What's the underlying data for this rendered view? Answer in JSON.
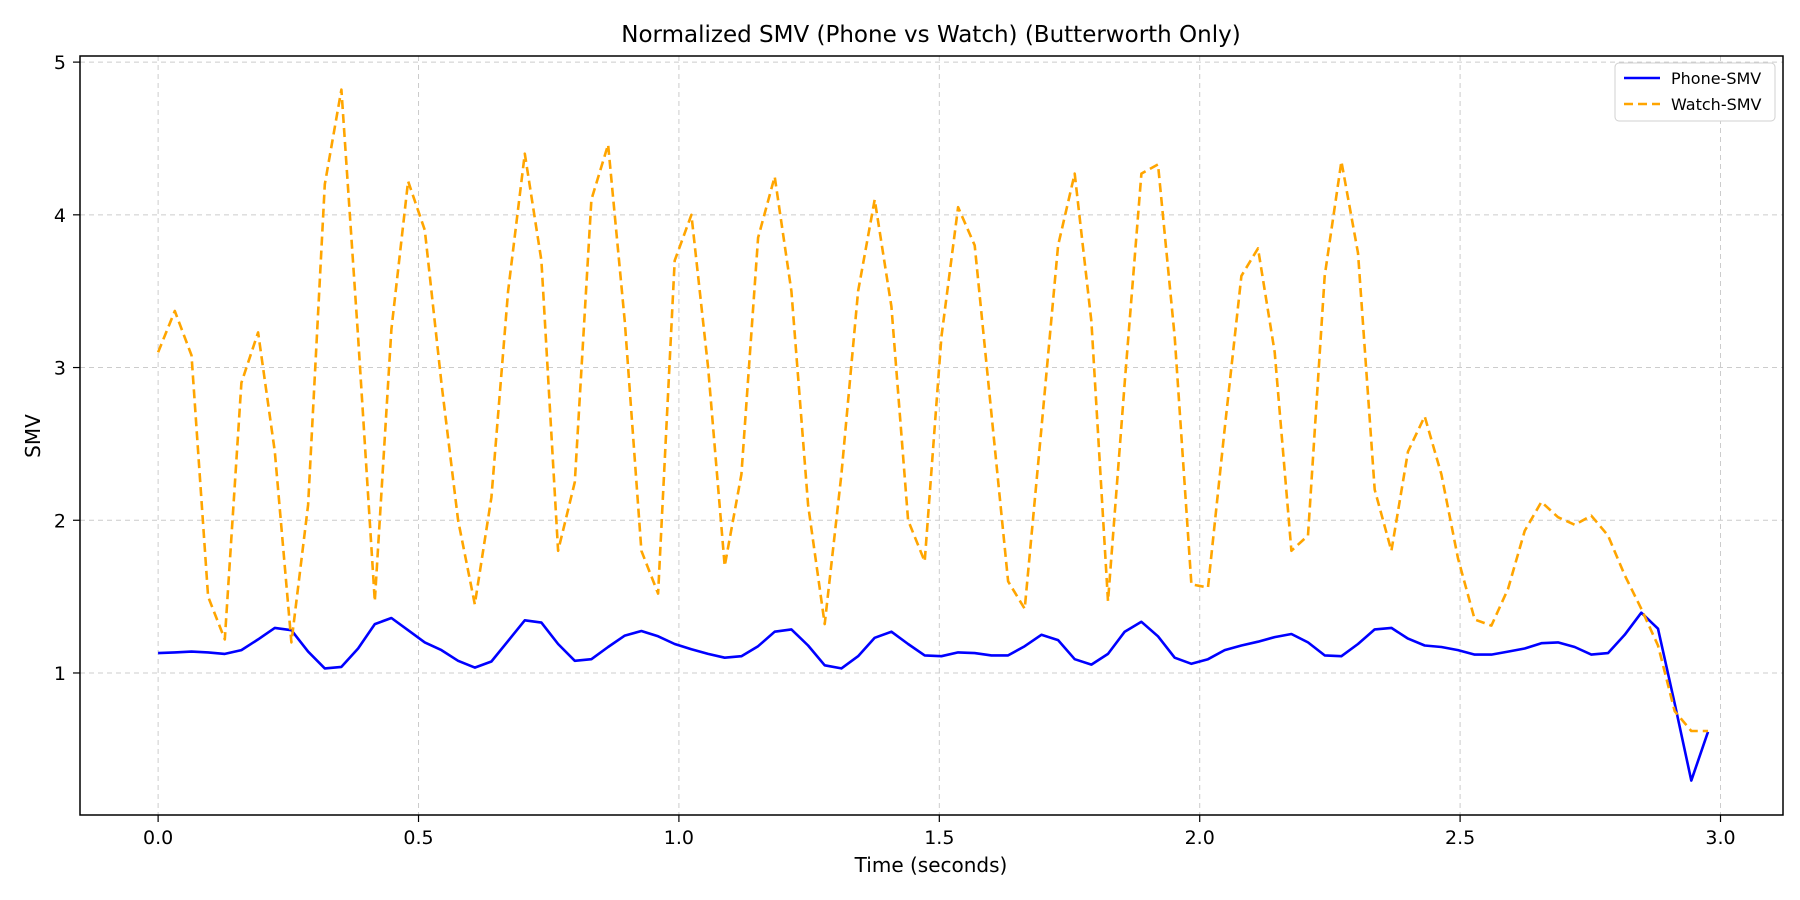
{
  "chart_data": {
    "type": "line",
    "title": "Normalized SMV (Phone vs Watch) (Butterworth Only)",
    "xlabel": "Time (seconds)",
    "ylabel": "SMV",
    "xlim": [
      -0.15,
      3.12
    ],
    "ylim": [
      0.07,
      5.04
    ],
    "xticks": [
      0.0,
      0.5,
      1.0,
      1.5,
      2.0,
      2.5,
      3.0
    ],
    "xtick_labels": [
      "0.0",
      "0.5",
      "1.0",
      "1.5",
      "2.0",
      "2.5",
      "3.0"
    ],
    "yticks": [
      1,
      2,
      3,
      4,
      5
    ],
    "ytick_labels": [
      "1",
      "2",
      "3",
      "4",
      "5"
    ],
    "grid": true,
    "legend_position": "top-right",
    "series": [
      {
        "name": "Phone-SMV",
        "color": "#0000ff",
        "dash": "solid",
        "x": [
          0.0,
          0.032,
          0.064,
          0.096,
          0.128,
          0.16,
          0.192,
          0.224,
          0.256,
          0.288,
          0.32,
          0.352,
          0.384,
          0.416,
          0.448,
          0.48,
          0.512,
          0.544,
          0.576,
          0.608,
          0.64,
          0.672,
          0.704,
          0.736,
          0.768,
          0.8,
          0.832,
          0.864,
          0.896,
          0.928,
          0.96,
          0.992,
          1.024,
          1.056,
          1.088,
          1.12,
          1.152,
          1.184,
          1.216,
          1.248,
          1.28,
          1.312,
          1.344,
          1.376,
          1.408,
          1.44,
          1.472,
          1.504,
          1.536,
          1.568,
          1.6,
          1.632,
          1.664,
          1.696,
          1.728,
          1.76,
          1.792,
          1.824,
          1.856,
          1.888,
          1.92,
          1.952,
          1.984,
          2.016,
          2.048,
          2.08,
          2.112,
          2.144,
          2.176,
          2.208,
          2.24,
          2.272,
          2.304,
          2.336,
          2.368,
          2.4,
          2.432,
          2.464,
          2.496,
          2.528,
          2.56,
          2.592,
          2.624,
          2.656,
          2.688,
          2.72,
          2.752,
          2.784,
          2.816,
          2.848,
          2.88,
          2.912,
          2.944,
          2.976
        ],
        "y": [
          1.13,
          1.135,
          1.14,
          1.135,
          1.125,
          1.15,
          1.22,
          1.295,
          1.28,
          1.14,
          1.03,
          1.04,
          1.16,
          1.32,
          1.36,
          1.28,
          1.2,
          1.15,
          1.08,
          1.035,
          1.075,
          1.21,
          1.345,
          1.33,
          1.19,
          1.08,
          1.09,
          1.17,
          1.245,
          1.275,
          1.24,
          1.19,
          1.155,
          1.125,
          1.1,
          1.11,
          1.175,
          1.27,
          1.285,
          1.18,
          1.05,
          1.03,
          1.11,
          1.23,
          1.27,
          1.19,
          1.115,
          1.11,
          1.135,
          1.13,
          1.115,
          1.115,
          1.175,
          1.25,
          1.215,
          1.09,
          1.055,
          1.125,
          1.27,
          1.335,
          1.24,
          1.1,
          1.06,
          1.09,
          1.15,
          1.18,
          1.205,
          1.235,
          1.255,
          1.2,
          1.115,
          1.11,
          1.19,
          1.285,
          1.295,
          1.225,
          1.18,
          1.17,
          1.15,
          1.12,
          1.12,
          1.14,
          1.16,
          1.195,
          1.2,
          1.17,
          1.12,
          1.13,
          1.25,
          1.395,
          1.29,
          0.8,
          0.295,
          0.615
        ]
      },
      {
        "name": "Watch-SMV",
        "color": "#ffa500",
        "dash": "dashed",
        "x": [
          0.0,
          0.032,
          0.064,
          0.096,
          0.128,
          0.16,
          0.192,
          0.224,
          0.256,
          0.288,
          0.32,
          0.352,
          0.384,
          0.416,
          0.448,
          0.48,
          0.512,
          0.544,
          0.576,
          0.608,
          0.64,
          0.672,
          0.704,
          0.736,
          0.768,
          0.8,
          0.832,
          0.864,
          0.896,
          0.928,
          0.96,
          0.992,
          1.024,
          1.056,
          1.088,
          1.12,
          1.152,
          1.184,
          1.216,
          1.248,
          1.28,
          1.312,
          1.344,
          1.376,
          1.408,
          1.44,
          1.472,
          1.504,
          1.536,
          1.568,
          1.6,
          1.632,
          1.664,
          1.696,
          1.728,
          1.76,
          1.792,
          1.824,
          1.856,
          1.888,
          1.92,
          1.952,
          1.984,
          2.016,
          2.048,
          2.08,
          2.112,
          2.144,
          2.176,
          2.208,
          2.24,
          2.272,
          2.304,
          2.336,
          2.368,
          2.4,
          2.432,
          2.464,
          2.496,
          2.528,
          2.56,
          2.592,
          2.624,
          2.656,
          2.688,
          2.72,
          2.752,
          2.784,
          2.816,
          2.848,
          2.88,
          2.912,
          2.944,
          2.976
        ],
        "y": [
          3.1,
          3.37,
          3.08,
          1.5,
          1.22,
          2.9,
          3.23,
          2.45,
          1.2,
          2.1,
          4.2,
          4.82,
          3.2,
          1.47,
          3.25,
          4.22,
          3.9,
          2.9,
          2.0,
          1.45,
          2.15,
          3.5,
          4.4,
          3.7,
          1.8,
          2.25,
          4.1,
          4.46,
          3.3,
          1.8,
          1.52,
          3.7,
          4.0,
          3.0,
          1.7,
          2.3,
          3.85,
          4.25,
          3.5,
          2.1,
          1.32,
          2.3,
          3.5,
          4.1,
          3.4,
          2.0,
          1.73,
          3.2,
          4.05,
          3.8,
          2.7,
          1.6,
          1.42,
          2.6,
          3.8,
          4.27,
          3.3,
          1.47,
          2.9,
          4.27,
          4.33,
          3.2,
          1.58,
          1.56,
          2.6,
          3.6,
          3.78,
          3.1,
          1.8,
          1.9,
          3.6,
          4.35,
          3.75,
          2.2,
          1.8,
          2.45,
          2.68,
          2.3,
          1.75,
          1.35,
          1.31,
          1.55,
          1.93,
          2.12,
          2.02,
          1.97,
          2.03,
          1.9,
          1.64,
          1.42,
          1.18,
          0.75,
          0.62,
          0.62
        ]
      }
    ]
  }
}
